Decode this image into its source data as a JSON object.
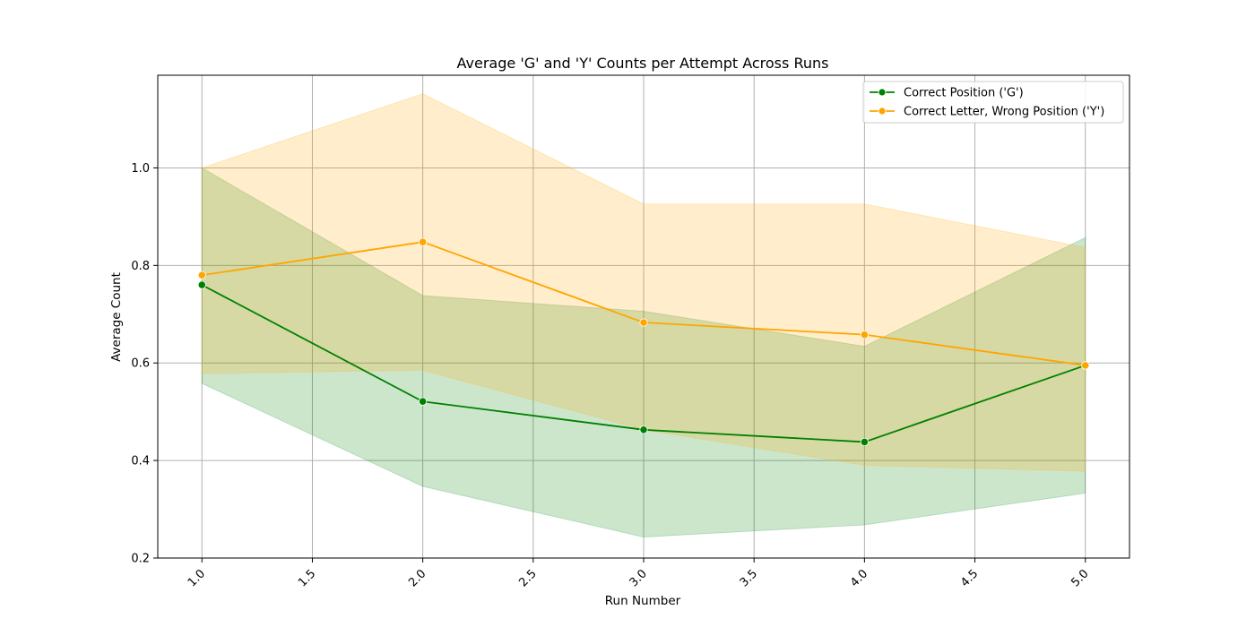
{
  "chart_data": {
    "type": "line",
    "title": "Average 'G' and 'Y' Counts per Attempt Across Runs",
    "xlabel": "Run Number",
    "ylabel": "Average Count",
    "xlim": [
      0.8,
      5.2
    ],
    "ylim": [
      0.2,
      1.19
    ],
    "xticks": [
      "1.0",
      "1.5",
      "2.0",
      "2.5",
      "3.0",
      "3.5",
      "4.0",
      "4.5",
      "5.0"
    ],
    "yticks": [
      "0.2",
      "0.4",
      "0.6",
      "0.8",
      "1.0"
    ],
    "grid": true,
    "legend_position": "top-right",
    "x": [
      1,
      2,
      3,
      4,
      5
    ],
    "series": [
      {
        "name": "Correct Position ('G')",
        "color": "#008000",
        "values": [
          0.76,
          0.521,
          0.463,
          0.438,
          0.595
        ],
        "band_lower": [
          0.558,
          0.347,
          0.243,
          0.268,
          0.333
        ],
        "band_upper": [
          1.0,
          0.738,
          0.706,
          0.634,
          0.857
        ]
      },
      {
        "name": "Correct Letter, Wrong Position ('Y')",
        "color": "#FFA500",
        "values": [
          0.78,
          0.848,
          0.683,
          0.658,
          0.595
        ],
        "band_lower": [
          0.578,
          0.585,
          0.463,
          0.39,
          0.378
        ],
        "band_upper": [
          1.0,
          1.152,
          0.926,
          0.926,
          0.837
        ]
      }
    ]
  }
}
